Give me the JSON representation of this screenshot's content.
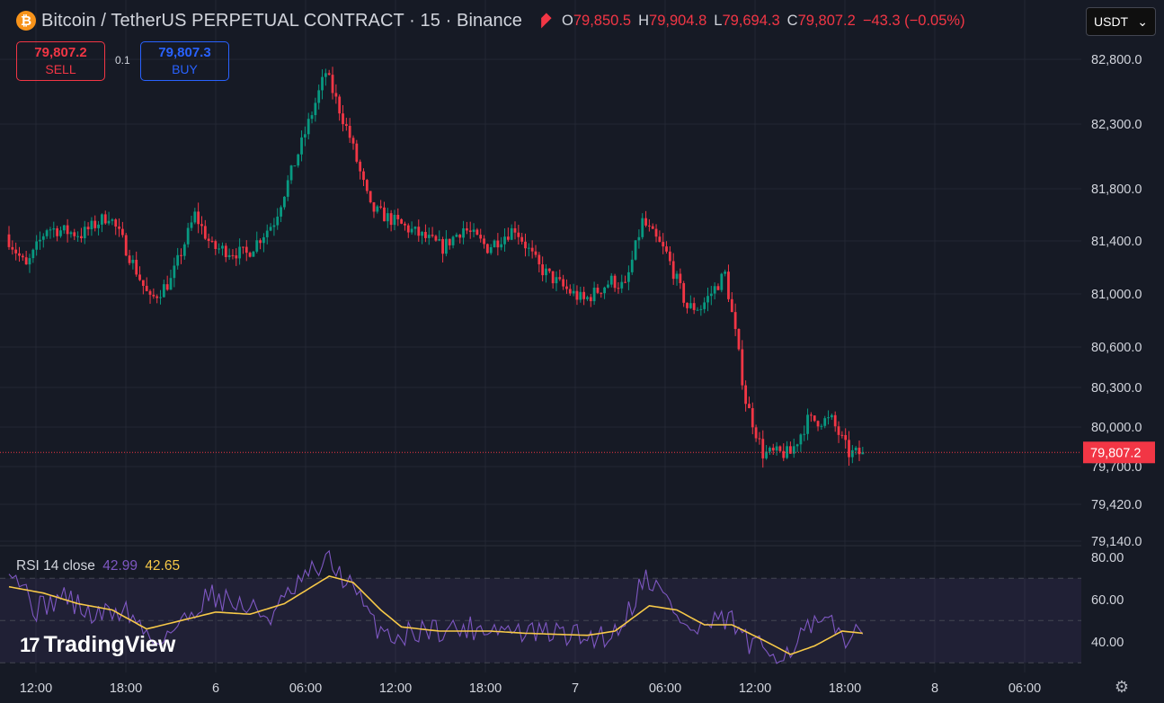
{
  "header": {
    "coin_symbol": "₿",
    "title": "Bitcoin / TetherUS PERPETUAL CONTRACT · 15 · Binance",
    "ohlc": [
      {
        "k": "O",
        "v": "79,850.5"
      },
      {
        "k": "H",
        "v": "79,904.8"
      },
      {
        "k": "L",
        "v": "79,694.3"
      },
      {
        "k": "C",
        "v": "79,807.2"
      }
    ],
    "change": "−43.3 (−0.05%)"
  },
  "trade": {
    "sell_price": "79,807.2",
    "sell_label": "SELL",
    "buy_price": "79,807.3",
    "buy_label": "BUY",
    "qty": "0.1"
  },
  "currency": {
    "label": "USDT",
    "icon": "chevron-down-icon"
  },
  "rsi": {
    "name": "RSI 14 close",
    "value": "42.99",
    "ma_value": "42.65"
  },
  "brand": {
    "logo": "17",
    "name": "TradingView"
  },
  "colors": {
    "up": "#089981",
    "down": "#f23645",
    "rsi_line": "#7e57c2",
    "rsi_ma": "#f7c948",
    "rsi_band": "rgba(126,87,194,0.10)",
    "background": "#161a25",
    "grid": "#232733"
  },
  "chart_data": [
    {
      "type": "candlestick",
      "title": "Bitcoin / TetherUS PERPETUAL CONTRACT · 15 · Binance",
      "x_tick_labels": [
        "12:00",
        "18:00",
        "6",
        "06:00",
        "12:00",
        "18:00",
        "7",
        "06:00",
        "12:00",
        "18:00",
        "8",
        "06:00"
      ],
      "y_tick_labels": [
        "82,800.0",
        "82,300.0",
        "81,800.0",
        "81,400.0",
        "81,000.0",
        "80,600.0",
        "80,300.0",
        "80,000.0",
        "79,700.0",
        "79,420.0",
        "79,140.0"
      ],
      "y_ticks": [
        82800,
        82300,
        81800,
        81400,
        81000,
        80600,
        80300,
        80000,
        79700,
        79420,
        79140
      ],
      "last_price": 79807.2,
      "last_price_label": "79,807.2",
      "key_points": [
        [
          0,
          81450
        ],
        [
          6,
          81200
        ],
        [
          12,
          81500
        ],
        [
          22,
          81450
        ],
        [
          30,
          81600
        ],
        [
          34,
          81400
        ],
        [
          42,
          80950
        ],
        [
          48,
          81100
        ],
        [
          55,
          81600
        ],
        [
          60,
          81350
        ],
        [
          70,
          81300
        ],
        [
          78,
          81550
        ],
        [
          86,
          82150
        ],
        [
          93,
          82700
        ],
        [
          100,
          82200
        ],
        [
          106,
          81650
        ],
        [
          113,
          81550
        ],
        [
          120,
          81450
        ],
        [
          127,
          81350
        ],
        [
          133,
          81500
        ],
        [
          140,
          81350
        ],
        [
          148,
          81500
        ],
        [
          155,
          81200
        ],
        [
          162,
          81050
        ],
        [
          168,
          80950
        ],
        [
          176,
          81100
        ],
        [
          180,
          81050
        ],
        [
          185,
          81550
        ],
        [
          192,
          81300
        ],
        [
          198,
          80900
        ],
        [
          202,
          80900
        ],
        [
          209,
          81150
        ],
        [
          212,
          80700
        ],
        [
          215,
          80200
        ],
        [
          220,
          79800
        ],
        [
          228,
          79800
        ],
        [
          233,
          80050
        ],
        [
          240,
          80050
        ],
        [
          245,
          79800
        ],
        [
          248,
          79800
        ]
      ],
      "candle_count": 249
    },
    {
      "type": "line",
      "title": "RSI 14 close",
      "ylim": [
        28,
        85
      ],
      "y_ticks": [
        80,
        60,
        40
      ],
      "y_tick_labels": [
        "80.00",
        "60.00",
        "40.00"
      ],
      "bands": [
        70,
        50,
        30
      ],
      "series": [
        {
          "name": "RSI",
          "color": "#7e57c2",
          "key_points": [
            [
              0,
              78
            ],
            [
              8,
              55
            ],
            [
              16,
              62
            ],
            [
              24,
              52
            ],
            [
              34,
              55
            ],
            [
              42,
              40
            ],
            [
              50,
              48
            ],
            [
              58,
              63
            ],
            [
              66,
              58
            ],
            [
              76,
              52
            ],
            [
              86,
              70
            ],
            [
              93,
              78
            ],
            [
              100,
              65
            ],
            [
              106,
              48
            ],
            [
              113,
              42
            ],
            [
              120,
              46
            ],
            [
              130,
              46
            ],
            [
              140,
              47
            ],
            [
              150,
              44
            ],
            [
              160,
              44
            ],
            [
              168,
              42
            ],
            [
              176,
              44
            ],
            [
              180,
              55
            ],
            [
              185,
              72
            ],
            [
              192,
              58
            ],
            [
              198,
              44
            ],
            [
              204,
              48
            ],
            [
              210,
              50
            ],
            [
              215,
              38
            ],
            [
              220,
              36
            ],
            [
              226,
              35
            ],
            [
              232,
              46
            ],
            [
              238,
              48
            ],
            [
              244,
              42
            ],
            [
              248,
              43
            ]
          ]
        },
        {
          "name": "RSI-based MA",
          "color": "#f7c948",
          "key_points": [
            [
              0,
              66
            ],
            [
              10,
              63
            ],
            [
              20,
              58
            ],
            [
              30,
              55
            ],
            [
              40,
              46
            ],
            [
              50,
              50
            ],
            [
              60,
              54
            ],
            [
              70,
              53
            ],
            [
              80,
              58
            ],
            [
              93,
              71
            ],
            [
              100,
              68
            ],
            [
              108,
              55
            ],
            [
              114,
              47
            ],
            [
              125,
              45
            ],
            [
              140,
              45
            ],
            [
              150,
              44
            ],
            [
              168,
              43
            ],
            [
              176,
              45
            ],
            [
              186,
              57
            ],
            [
              194,
              55
            ],
            [
              202,
              48
            ],
            [
              210,
              48
            ],
            [
              220,
              40
            ],
            [
              227,
              34
            ],
            [
              234,
              38
            ],
            [
              242,
              45
            ],
            [
              248,
              44
            ]
          ]
        }
      ]
    }
  ]
}
